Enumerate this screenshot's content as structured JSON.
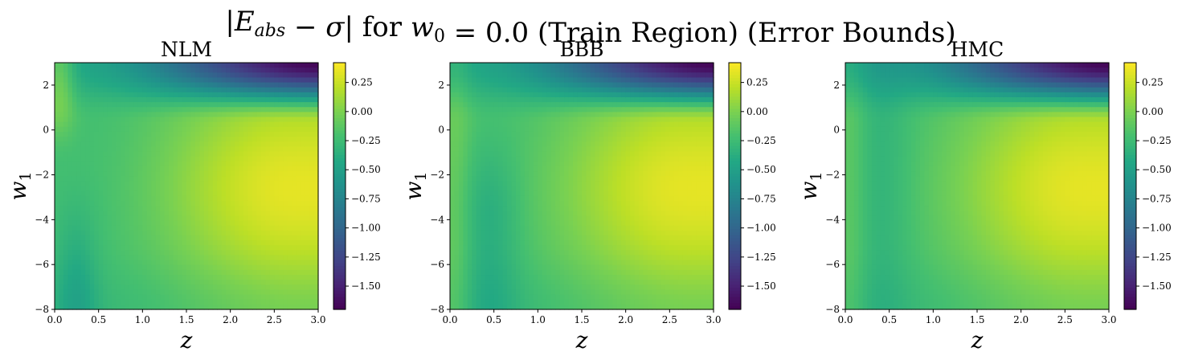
{
  "figure": {
    "title_parts": [
      {
        "t": "|E",
        "math": true
      },
      {
        "t": "abs",
        "math": true,
        "sub": true
      },
      {
        "t": " − σ| ",
        "math": true
      },
      {
        "t": "for ",
        "math": false
      },
      {
        "t": "w",
        "math": true
      },
      {
        "t": "0",
        "math": false,
        "sub": true
      },
      {
        "t": " = 0.0 ",
        "math": false
      },
      {
        "t": "(Train Region) (Error Bounds)",
        "math": false
      }
    ]
  },
  "chart_data": [
    {
      "type": "heatmap",
      "title": "NLM",
      "xlabel": "z",
      "ylabel": "w",
      "ylabel_sub": "1",
      "xlim": [
        0.0,
        3.0
      ],
      "ylim": [
        -8,
        3
      ],
      "xticks": [
        "0.0",
        "0.5",
        "1.0",
        "1.5",
        "2.0",
        "2.5",
        "3.0"
      ],
      "yticks": [
        "2",
        "0",
        "−2",
        "−4",
        "−6",
        "−8"
      ],
      "colorbar": {
        "range": [
          -1.7,
          0.42
        ],
        "ticks": [
          "0.25",
          "0.00",
          "−0.25",
          "−0.50",
          "−0.75",
          "−1.00",
          "−1.25",
          "−1.50"
        ],
        "colormap": "viridis"
      },
      "model": "nlm"
    },
    {
      "type": "heatmap",
      "title": "BBB",
      "xlabel": "z",
      "ylabel": "w",
      "ylabel_sub": "1",
      "xlim": [
        0.0,
        3.0
      ],
      "ylim": [
        -8,
        3
      ],
      "xticks": [
        "0.0",
        "0.5",
        "1.0",
        "1.5",
        "2.0",
        "2.5",
        "3.0"
      ],
      "yticks": [
        "2",
        "0",
        "−2",
        "−4",
        "−6",
        "−8"
      ],
      "colorbar": {
        "range": [
          -1.7,
          0.42
        ],
        "ticks": [
          "0.25",
          "0.00",
          "−0.25",
          "−0.50",
          "−0.75",
          "−1.00",
          "−1.25",
          "−1.50"
        ],
        "colormap": "viridis"
      },
      "model": "bbb"
    },
    {
      "type": "heatmap",
      "title": "HMC",
      "xlabel": "z",
      "ylabel": "w",
      "ylabel_sub": "1",
      "xlim": [
        0.0,
        3.0
      ],
      "ylim": [
        -8,
        3
      ],
      "xticks": [
        "0.0",
        "0.5",
        "1.0",
        "1.5",
        "2.0",
        "2.5",
        "3.0"
      ],
      "yticks": [
        "2",
        "0",
        "−2",
        "−4",
        "−6",
        "−8"
      ],
      "colorbar": {
        "range": [
          -1.7,
          0.42
        ],
        "ticks": [
          "0.25",
          "0.00",
          "−0.25",
          "−0.50",
          "−0.75",
          "−1.00",
          "−1.25",
          "−1.50"
        ],
        "colormap": "viridis"
      },
      "model": "hmc"
    }
  ]
}
